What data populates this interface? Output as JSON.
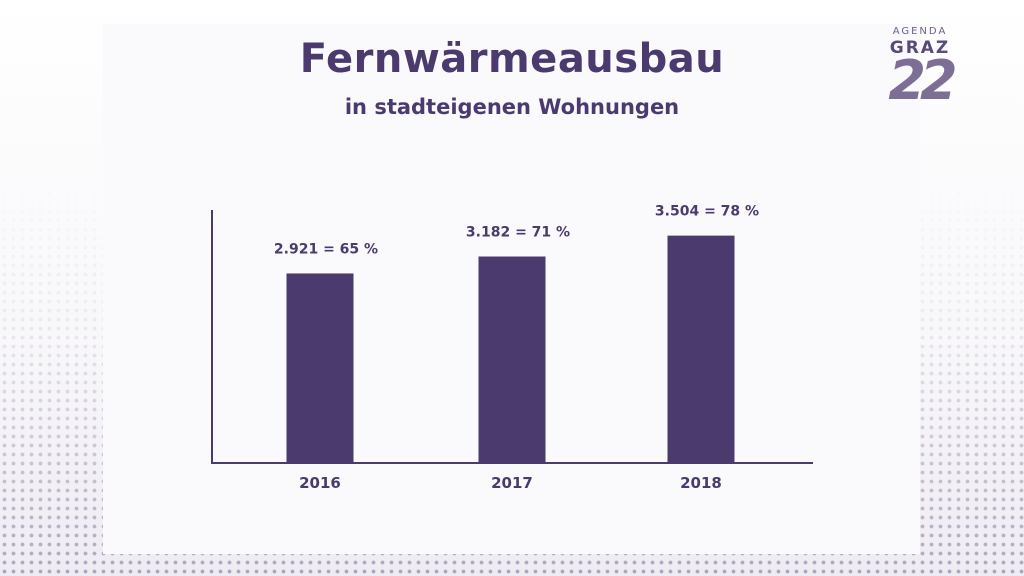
{
  "header": {
    "title": "Fernwärmeausbau",
    "subtitle": "in stadteigenen Wohnungen"
  },
  "logo": {
    "line1": "AGENDA",
    "line2": "GRAZ",
    "number": "22"
  },
  "colors": {
    "accent": "#4b3a6e",
    "panel": "#faf9fb"
  },
  "chart_data": {
    "type": "bar",
    "title": "Fernwärmeausbau",
    "subtitle": "in stadteigenen Wohnungen",
    "categories": [
      "2016",
      "2017",
      "2018"
    ],
    "values": [
      2921,
      3182,
      3504
    ],
    "percentages": [
      65,
      71,
      78
    ],
    "data_labels": [
      "2.921 = 65 %",
      "3.182 = 71 %",
      "3.504 = 78 %"
    ],
    "xlabel": "",
    "ylabel": "",
    "ylim": [
      0,
      4500
    ],
    "grid": false,
    "legend": "none"
  }
}
